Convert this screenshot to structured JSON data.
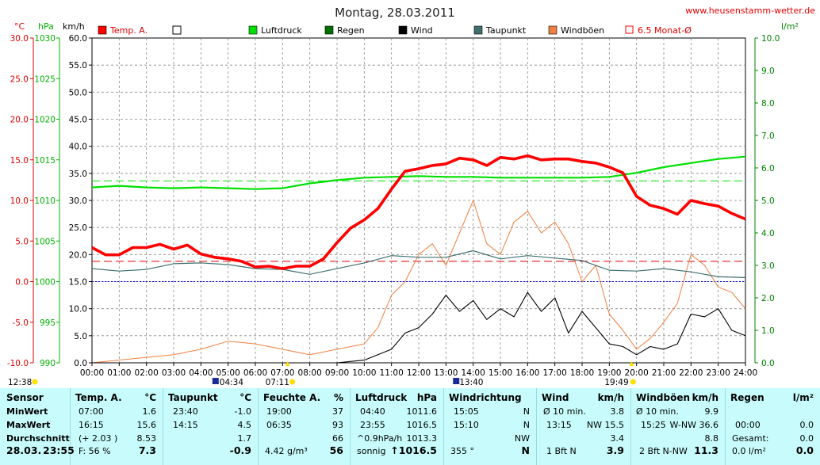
{
  "title": "Montag, 28.03.2011",
  "site": "www.heusenstamm-wetter.de",
  "units": {
    "temp": "°C",
    "press": "hPa",
    "wind": "km/h",
    "rain": "l/m²"
  },
  "legend": [
    {
      "label": "Temp. A.",
      "color": "#ff0000",
      "kind": "filled"
    },
    {
      "label": "",
      "color": "#000000",
      "kind": "empty"
    },
    {
      "label": "Luftdruck",
      "color": "#00e000",
      "kind": "filled"
    },
    {
      "label": "Regen",
      "color": "#007000",
      "kind": "filled"
    },
    {
      "label": "Wind",
      "color": "#000000",
      "kind": "filled"
    },
    {
      "label": "Taupunkt",
      "color": "#407070",
      "kind": "filled"
    },
    {
      "label": "Windböen",
      "color": "#f08040",
      "kind": "filled"
    },
    {
      "label": "6.5 Monat-Ø",
      "color": "#ff0000",
      "kind": "outline"
    }
  ],
  "axes": {
    "temp_ticks": [
      "30.0",
      "25.0",
      "20.0",
      "15.0",
      "10.0",
      "5.0",
      "0.0",
      "-5.0",
      "-10.0"
    ],
    "press_ticks": [
      "1030",
      "1025",
      "1020",
      "1015",
      "1010",
      "1005",
      "1000",
      "995",
      "990"
    ],
    "wind_ticks": [
      "60.0",
      "55.0",
      "50.0",
      "45.0",
      "40.0",
      "35.0",
      "30.0",
      "25.0",
      "20.0",
      "15.0",
      "10.0",
      "5.0",
      "0.0"
    ],
    "rain_ticks": [
      "10.0",
      "9.0",
      "8.0",
      "7.0",
      "6.0",
      "5.0",
      "4.0",
      "3.0",
      "2.0",
      "1.0",
      "0.0"
    ],
    "x_ticks": [
      "00:00",
      "01:00",
      "02:00",
      "03:00",
      "04:00",
      "05:00",
      "06:00",
      "07:00",
      "08:00",
      "09:00",
      "10:00",
      "11:00",
      "12:00",
      "13:00",
      "14:00",
      "15:00",
      "16:00",
      "17:00",
      "18:00",
      "19:00",
      "20:00",
      "21:00",
      "22:00",
      "23:00",
      "24:00"
    ]
  },
  "markers": {
    "moonset": "12:38",
    "moonrise": "04:34",
    "sunrise": "07:11",
    "culmination": "13:40",
    "sunset": "19:49"
  },
  "chart_data": {
    "type": "line",
    "title": "Montag, 28.03.2011",
    "x_range_hours": [
      0,
      24
    ],
    "temp_range": [
      -10,
      30
    ],
    "press_range": [
      990,
      1030
    ],
    "wind_range": [
      0,
      60
    ],
    "rain_range": [
      0,
      10
    ],
    "grid": true,
    "reference_lines": [
      {
        "name": "6.5 Monat-Ø temp",
        "axis": "temp",
        "value": 2.5
      },
      {
        "name": "pressure mean",
        "axis": "press",
        "value": 1012.4
      },
      {
        "name": "0 °C",
        "axis": "temp",
        "value": 0
      }
    ],
    "series": [
      {
        "name": "Temp. A.",
        "axis": "temp",
        "color": "#ff0000",
        "x": [
          0,
          0.5,
          1,
          1.5,
          2,
          2.5,
          3,
          3.5,
          4,
          4.5,
          5,
          5.5,
          6,
          6.5,
          7,
          7.5,
          8,
          8.5,
          9,
          9.5,
          10,
          10.5,
          11,
          11.5,
          12,
          12.5,
          13,
          13.5,
          14,
          14.5,
          15,
          15.5,
          16,
          16.5,
          17,
          17.5,
          18,
          18.5,
          19,
          19.5,
          20,
          20.5,
          21,
          21.5,
          22,
          22.5,
          23,
          23.5,
          24
        ],
        "y": [
          4.2,
          3.3,
          3.3,
          4.2,
          4.2,
          4.6,
          4.0,
          4.5,
          3.4,
          3.0,
          2.8,
          2.5,
          1.8,
          1.9,
          1.6,
          1.9,
          1.9,
          2.8,
          4.8,
          6.6,
          7.6,
          9.0,
          11.4,
          13.6,
          13.9,
          14.3,
          14.5,
          15.2,
          15.0,
          14.3,
          15.3,
          15.1,
          15.5,
          15.0,
          15.1,
          15.1,
          14.8,
          14.6,
          14.1,
          13.4,
          10.5,
          9.4,
          9.0,
          8.3,
          10.0,
          9.6,
          9.3,
          8.4,
          7.7
        ]
      },
      {
        "name": "Luftdruck",
        "axis": "press",
        "color": "#00e000",
        "x": [
          0,
          1,
          2,
          3,
          4,
          5,
          6,
          7,
          8,
          9,
          10,
          11,
          12,
          13,
          14,
          15,
          16,
          17,
          18,
          19,
          20,
          21,
          22,
          23,
          24
        ],
        "y": [
          1011.6,
          1011.8,
          1011.6,
          1011.5,
          1011.6,
          1011.5,
          1011.4,
          1011.5,
          1012.1,
          1012.5,
          1012.8,
          1012.9,
          1013.0,
          1012.9,
          1012.9,
          1012.8,
          1012.8,
          1012.8,
          1012.8,
          1012.9,
          1013.4,
          1014.1,
          1014.6,
          1015.1,
          1015.4
        ]
      },
      {
        "name": "Taupunkt",
        "axis": "temp",
        "color": "#407070",
        "x": [
          0,
          1,
          2,
          3,
          4,
          5,
          6,
          7,
          8,
          9,
          10,
          11,
          12,
          13,
          14,
          15,
          16,
          17,
          18,
          19,
          20,
          21,
          22,
          23,
          24
        ],
        "y": [
          1.6,
          1.3,
          1.5,
          2.2,
          2.3,
          2.1,
          1.6,
          1.5,
          0.9,
          1.6,
          2.3,
          3.2,
          3.0,
          3.0,
          3.8,
          2.8,
          3.2,
          2.9,
          2.6,
          1.4,
          1.3,
          1.6,
          1.2,
          0.6,
          0.5
        ]
      },
      {
        "name": "Wind",
        "axis": "wind",
        "color": "#000000",
        "x": [
          0,
          9,
          10,
          11,
          11.5,
          12,
          12.5,
          13,
          13.5,
          14,
          14.5,
          15,
          15.5,
          16,
          16.5,
          17,
          17.5,
          18,
          18.5,
          19,
          19.5,
          20,
          20.5,
          21,
          21.5,
          22,
          22.5,
          23,
          23.5,
          24
        ],
        "y": [
          0,
          0,
          0.5,
          2.5,
          5.5,
          6.5,
          9.0,
          12.5,
          9.5,
          11.5,
          8.0,
          10.0,
          8.5,
          13.0,
          9.5,
          12.0,
          5.5,
          9.5,
          6.5,
          3.5,
          3.0,
          1.5,
          3.0,
          2.5,
          3.5,
          9.0,
          8.5,
          10.0,
          6.0,
          5.0
        ]
      },
      {
        "name": "Windböen",
        "axis": "wind",
        "color": "#f08040",
        "x": [
          0,
          3,
          4,
          5,
          6,
          7,
          8,
          9,
          10,
          10.5,
          11,
          11.5,
          12,
          12.5,
          13,
          13.5,
          14,
          14.5,
          15,
          15.5,
          16,
          16.5,
          17,
          17.5,
          18,
          18.5,
          19,
          19.5,
          20,
          20.5,
          21,
          21.5,
          22,
          22.5,
          23,
          23.5,
          24
        ],
        "y": [
          0,
          1.5,
          2.5,
          4.0,
          3.5,
          2.5,
          1.5,
          2.5,
          3.5,
          6.5,
          12.5,
          15.0,
          20.0,
          22.0,
          18.0,
          24.0,
          30.0,
          22.0,
          20.0,
          26.0,
          28.0,
          24.0,
          26.0,
          22.0,
          15.0,
          18.0,
          9.0,
          6.0,
          2.5,
          4.5,
          7.5,
          11.0,
          20.0,
          18.0,
          14.0,
          13.0,
          10.0
        ]
      }
    ]
  },
  "table": {
    "sensor": {
      "head": "Sensor",
      "rows": [
        "MinWert",
        "MaxWert",
        "Durchschnitt"
      ],
      "date": "28.03.",
      "time": "23:55"
    },
    "temp": {
      "head": "Temp. A.",
      "unit": "°C",
      "min_time": "07:00",
      "min_val": "1.6",
      "max_time": "16:15",
      "max_val": "15.6",
      "avg_extra": "(+ 2.03 )",
      "avg_val": "8.53",
      "foot_label": "F: 56 %",
      "foot_val": "7.3"
    },
    "dew": {
      "head": "Taupunkt",
      "unit": "°C",
      "min_time": "23:40",
      "min_val": "-1.0",
      "max_time": "14:15",
      "max_val": "4.5",
      "avg_val": "1.7",
      "foot_val": "-0.9"
    },
    "hum": {
      "head": "Feuchte A.",
      "unit": "%",
      "min_time": "19:00",
      "min_val": "37",
      "max_time": "06:35",
      "max_val": "93",
      "avg_val": "66",
      "foot_label": "4.42 g/m³",
      "foot_val": "56"
    },
    "press": {
      "head": "Luftdruck",
      "unit": "hPa",
      "min_time": "04:40",
      "min_val": "1011.6",
      "max_time": "23:55",
      "max_val": "1016.5",
      "avg_label": "^0.9hPa/h",
      "avg_val": "1013.3",
      "foot_label": "sonnig",
      "foot_val": "↑1016.5"
    },
    "dir": {
      "head": "Windrichtung",
      "min_time": "15:05",
      "min_val": "N",
      "max_time": "15:10",
      "max_val": "N",
      "avg_val": "NW",
      "foot_label": "355 °",
      "foot_val": "N"
    },
    "wind": {
      "head": "Wind",
      "unit": "km/h",
      "min_label": "Ø 10 min.",
      "min_val": "3.8",
      "max_time": "13:15",
      "max_val": "NW 15.5",
      "avg_val": "3.4",
      "foot_label": "1 Bft N",
      "foot_val": "3.9"
    },
    "gust": {
      "head": "Windböen",
      "unit": "km/h",
      "min_label": "Ø 10 min.",
      "min_val": "9.9",
      "max_time": "15:25",
      "max_val": "W-NW 36.6",
      "avg_val": "8.8",
      "foot_label": "2 Bft N-NW",
      "foot_val": "11.3"
    },
    "rain": {
      "head": "Regen",
      "unit": "l/m²",
      "min_time": "00:00",
      "min_val": "0.0",
      "max_label": "Gesamt:",
      "max_val": "0.0",
      "avg_val": "0.0",
      "foot_label": "0.0 l/m²",
      "foot_val": "0.0"
    }
  }
}
